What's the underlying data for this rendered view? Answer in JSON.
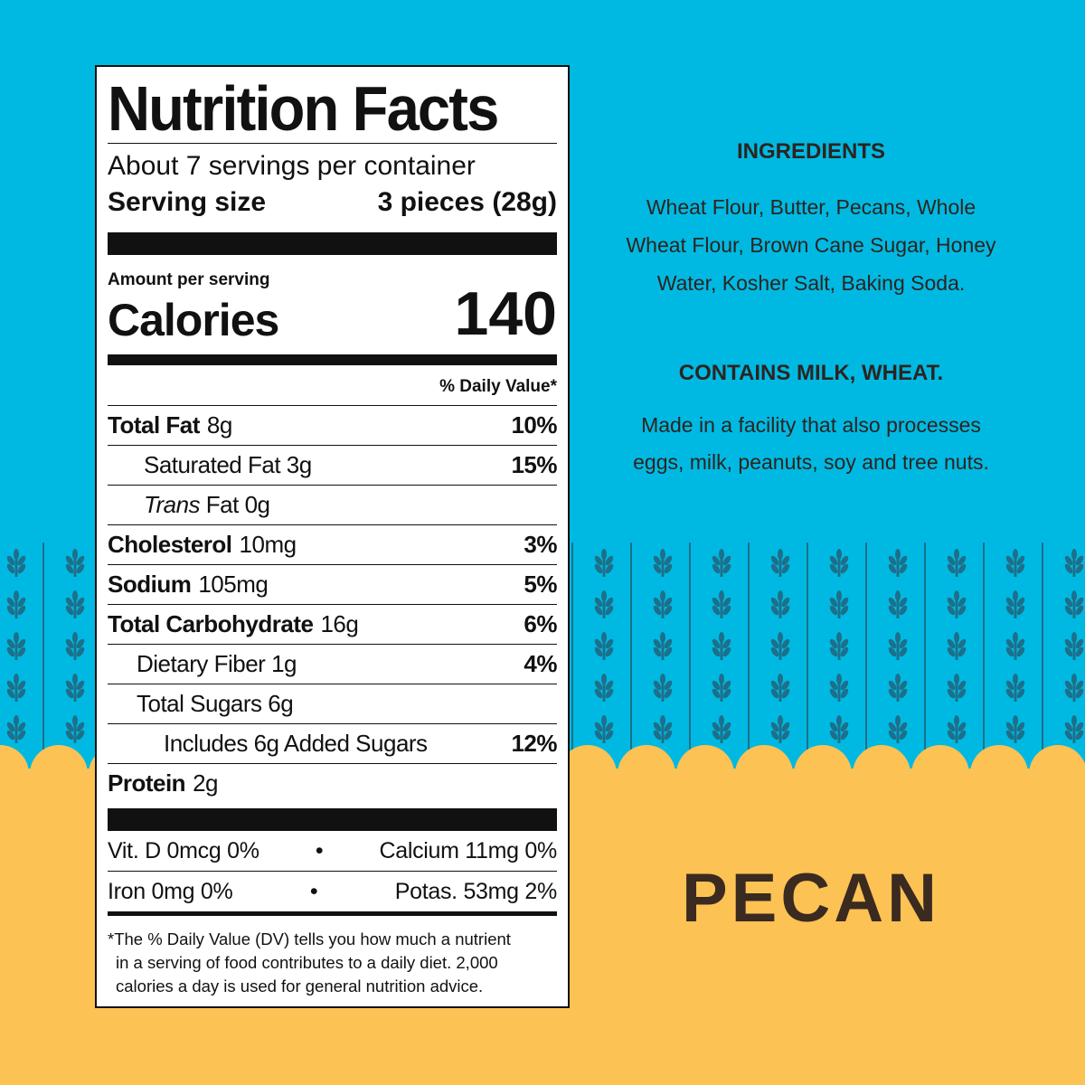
{
  "nutrition_label": {
    "title": "Nutrition Facts",
    "servings": "About 7 servings per container",
    "serving_size_label": "Serving size",
    "serving_size": "3 pieces (28g)",
    "amount_per_serving": "Amount per serving",
    "calories_label": "Calories",
    "calories": "140",
    "daily_value_header": "% Daily Value*",
    "rows": [
      {
        "name": "Total Fat",
        "amount": "8g",
        "dv": "10%"
      },
      {
        "name": "Saturated Fat",
        "amount": "3g",
        "dv": "15%"
      },
      {
        "name_italic": "Trans",
        "name": "Fat",
        "amount": "0g"
      },
      {
        "name": "Cholesterol",
        "amount": "10mg",
        "dv": "3%"
      },
      {
        "name": "Sodium",
        "amount": "105mg",
        "dv": "5%"
      },
      {
        "name": "Total Carbohydrate",
        "amount": "16g",
        "dv": "6%"
      },
      {
        "name": "Dietary Fiber",
        "amount": "1g",
        "dv": "4%"
      },
      {
        "name": "Total Sugars",
        "amount": "6g"
      },
      {
        "name": "Includes 6g Added Sugars",
        "dv": "12%"
      },
      {
        "name": "Protein",
        "amount": "2g"
      }
    ],
    "vitamins": [
      "Vit. D 0mcg 0%",
      "Calcium 11mg 0%",
      "Iron 0mg 0%",
      "Potas. 53mg 2%"
    ],
    "separator": "•",
    "footnote": [
      "*The % Daily Value (DV) tells you how much a nutrient",
      "in a serving of food contributes to a daily diet. 2,000",
      "calories a day is used for general nutrition advice."
    ]
  },
  "ingredients": {
    "heading": "INGREDIENTS",
    "lines": [
      "Wheat Flour, Butter, Pecans, Whole",
      "Wheat Flour, Brown Cane Sugar, Honey",
      "Water, Kosher Salt, Baking Soda."
    ],
    "allergen_heading": "CONTAINS MILK, WHEAT.",
    "allergen_lines": [
      "Made in a facility that also processes",
      "eggs, milk, peanuts, soy and tree nuts."
    ]
  },
  "flavor": "PECAN"
}
